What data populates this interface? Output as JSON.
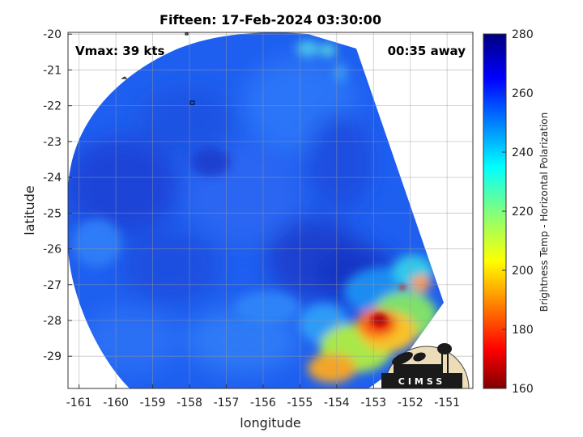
{
  "title": "Fifteen: 17-Feb-2024 03:30:00",
  "vmax_label": "Vmax: 39 kts",
  "time_away_label": "00:35 away",
  "xlabel": "longitude",
  "ylabel": "latitude",
  "colorbar_label": "Brightness Temp - Horizontal Polarization",
  "logo_text": "CIMSS",
  "map_data": {
    "type": "heatmap",
    "projection": "lat-lon",
    "xlim": [
      -161.3,
      -150.3
    ],
    "ylim": [
      -29.9,
      -19.95
    ],
    "xticks": [
      -161,
      -160,
      -159,
      -158,
      -157,
      -156,
      -155,
      -154,
      -153,
      -152,
      -151
    ],
    "yticks": [
      -20,
      -21,
      -22,
      -23,
      -24,
      -25,
      -26,
      -27,
      -28,
      -29
    ],
    "grid": true,
    "colormap": "jet",
    "clim": [
      160,
      280
    ],
    "colorbar_ticks": [
      280,
      260,
      240,
      220,
      200,
      180,
      160
    ],
    "features": [
      {
        "name": "cold-cloud-core",
        "lon": -152.9,
        "lat": -28.1,
        "temp": 185
      },
      {
        "name": "convective-band",
        "lon": -153.6,
        "lat": -28.7,
        "temp": 205
      },
      {
        "name": "eastern-convection",
        "lon": -152.0,
        "lat": -26.9,
        "temp": 215
      }
    ]
  },
  "colors": {
    "background_swath": "#1e5ff0",
    "colormap_stops": [
      "#00007f",
      "#0000ff",
      "#007fff",
      "#00ffff",
      "#7fff7f",
      "#ffff00",
      "#ff7f00",
      "#ff0000",
      "#7f0000"
    ]
  }
}
